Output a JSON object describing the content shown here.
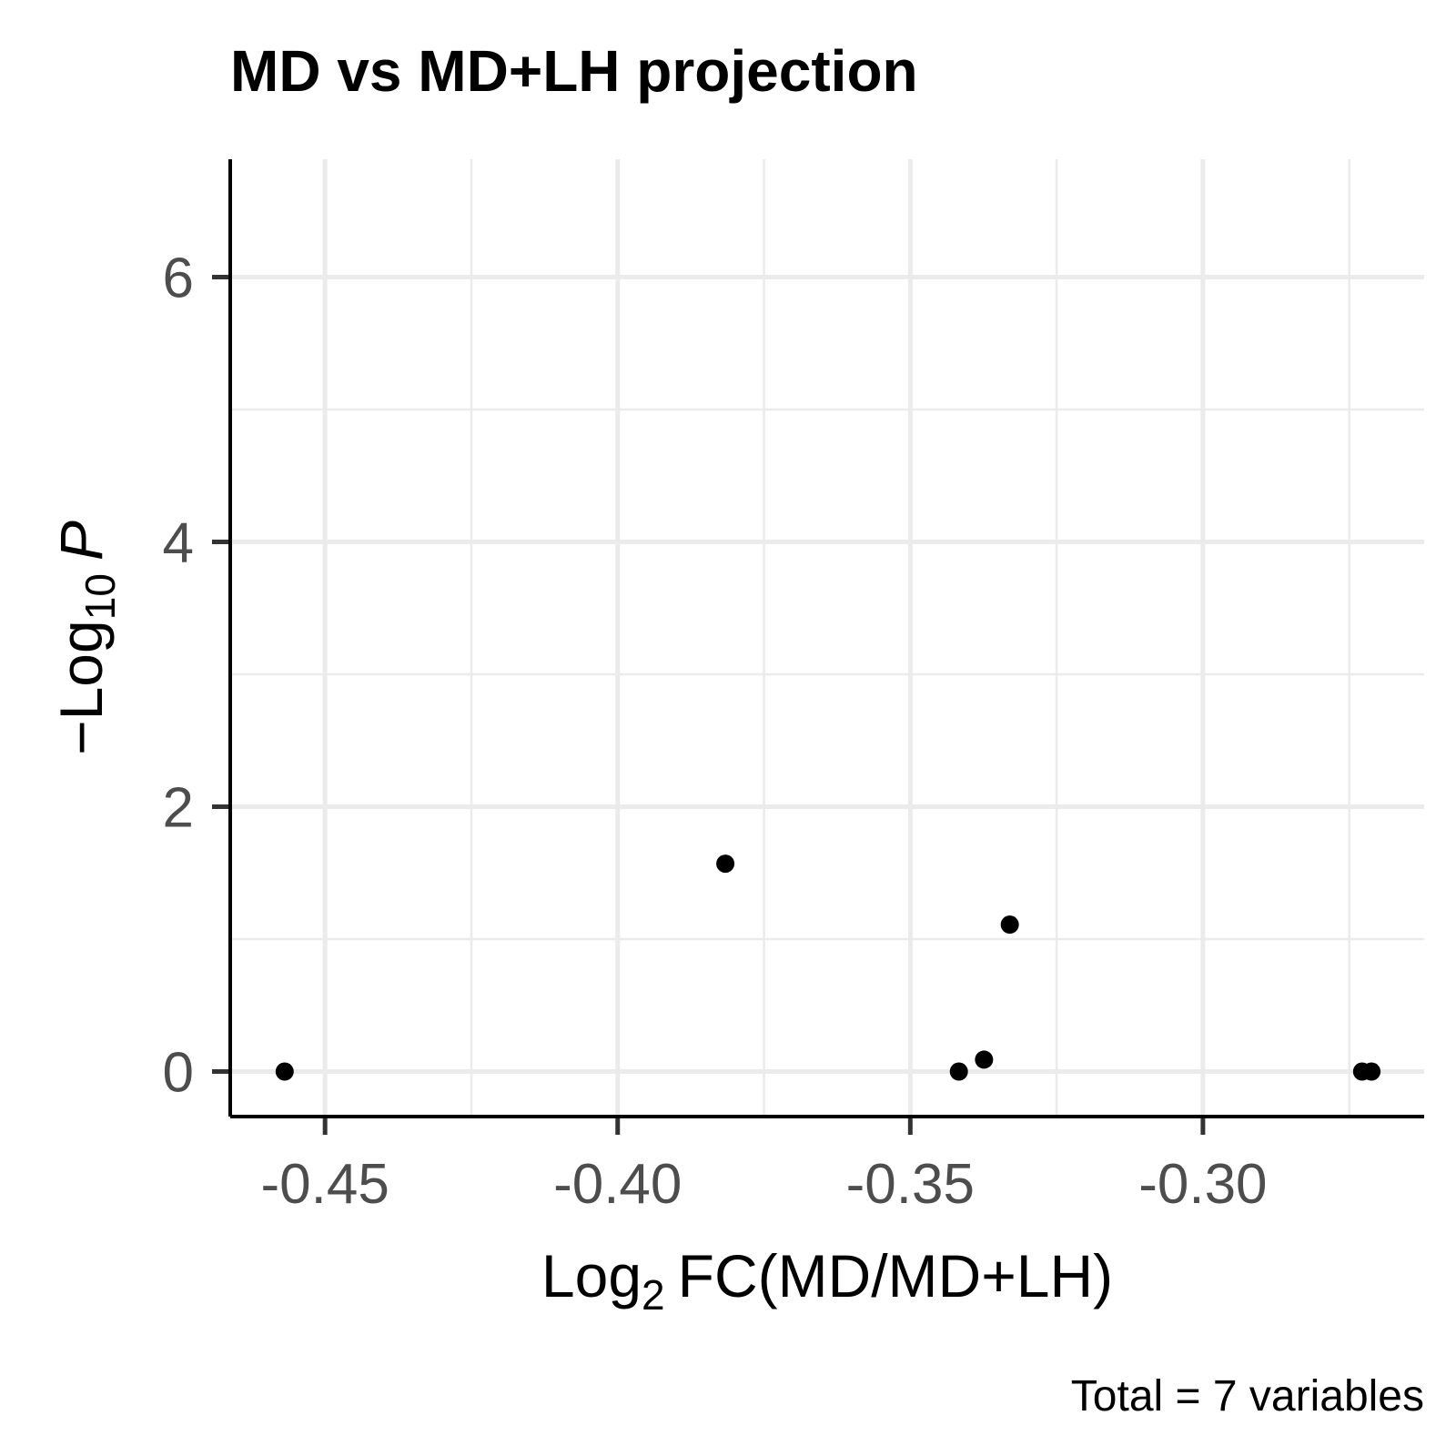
{
  "chart_data": {
    "type": "scatter",
    "title": "MD vs MD+LH projection",
    "xlabel_parts": [
      "Log",
      "2",
      "FC(MD/MD+LH)"
    ],
    "ylabel_parts": [
      "−Log",
      "10",
      "P"
    ],
    "caption": "Total = 7 variables",
    "x": [
      -0.4569,
      -0.3816,
      -0.333,
      -0.3417,
      -0.3374,
      -0.2728,
      -0.2712
    ],
    "y": [
      0,
      1.57,
      1.11,
      0,
      0.09,
      0,
      0
    ],
    "color": "#000000",
    "xlim": [
      -0.4662,
      -0.2622
    ],
    "ylim": [
      -0.34,
      6.89
    ],
    "xticks": [
      -0.45,
      {
        "value": -0.4,
        "label": "-0.40"
      },
      -0.35,
      {
        "value": -0.3,
        "label": "-0.30"
      }
    ],
    "yticks": [
      0,
      2,
      4,
      6
    ],
    "grid": true,
    "minor_grid": true
  }
}
